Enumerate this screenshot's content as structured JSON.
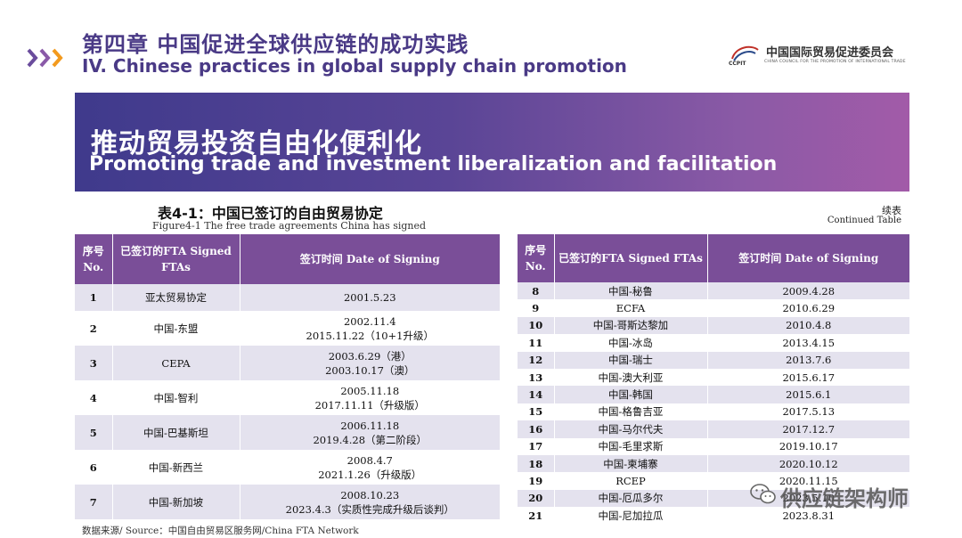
{
  "header": {
    "chapter_cn": "第四章 中国促进全球供应链的成功实践",
    "chapter_en": "IV. Chinese practices in global supply chain promotion",
    "logo_ccpit": "CCPIT",
    "logo_cn": "中国国际贸易促进委员会",
    "logo_en": "CHINA COUNCIL FOR THE PROMOTION OF INTERNATIONAL TRADE"
  },
  "banner": {
    "title_cn": "推动贸易投资自由化便利化",
    "title_en": "Promoting trade and investment liberalization and facilitation"
  },
  "table_caption": {
    "title": "表4-1：中国已签订的自由贸易协定",
    "subtitle": "Figure4-1 The free trade agreements China has signed",
    "continued_cn": "续表",
    "continued_en": "Continued Table"
  },
  "columns": {
    "no_cn": "序号",
    "no_en": "No.",
    "fta_cn": "已签订的FTA",
    "fta_en": "Signed FTAs",
    "date_cn": "签订时间",
    "date_en": "Date of Signing"
  },
  "left_rows": [
    {
      "no": "1",
      "fta": "亚太贸易协定",
      "date1": "2001.5.23",
      "date2": ""
    },
    {
      "no": "2",
      "fta": "中国-东盟",
      "date1": "2002.11.4",
      "date2": "2015.11.22（10+1升级）"
    },
    {
      "no": "3",
      "fta": "CEPA",
      "date1": "2003.6.29（港）",
      "date2": "2003.10.17（澳）"
    },
    {
      "no": "4",
      "fta": "中国-智利",
      "date1": "2005.11.18",
      "date2": "2017.11.11（升级版）"
    },
    {
      "no": "5",
      "fta": "中国-巴基斯坦",
      "date1": "2006.11.18",
      "date2": "2019.4.28（第二阶段）"
    },
    {
      "no": "6",
      "fta": "中国-新西兰",
      "date1": "2008.4.7",
      "date2": "2021.1.26（升级版）"
    },
    {
      "no": "7",
      "fta": "中国-新加坡",
      "date1": "2008.10.23",
      "date2": "2023.4.3（实质性完成升级后谈判）"
    }
  ],
  "right_rows": [
    {
      "no": "8",
      "fta": "中国-秘鲁",
      "date": "2009.4.28"
    },
    {
      "no": "9",
      "fta": "ECFA",
      "date": "2010.6.29"
    },
    {
      "no": "10",
      "fta": "中国-哥斯达黎加",
      "date": "2010.4.8"
    },
    {
      "no": "11",
      "fta": "中国-冰岛",
      "date": "2013.4.15"
    },
    {
      "no": "12",
      "fta": "中国-瑞士",
      "date": "2013.7.6"
    },
    {
      "no": "13",
      "fta": "中国-澳大利亚",
      "date": "2015.6.17"
    },
    {
      "no": "14",
      "fta": "中国-韩国",
      "date": "2015.6.1"
    },
    {
      "no": "15",
      "fta": "中国-格鲁吉亚",
      "date": "2017.5.13"
    },
    {
      "no": "16",
      "fta": "中国-马尔代夫",
      "date": "2017.12.7"
    },
    {
      "no": "17",
      "fta": "中国-毛里求斯",
      "date": "2019.10.17"
    },
    {
      "no": "18",
      "fta": "中国-柬埔寨",
      "date": "2020.10.12"
    },
    {
      "no": "19",
      "fta": "RCEP",
      "date": "2020.11.15"
    },
    {
      "no": "20",
      "fta": "中国-厄瓜多尔",
      "date": "2023.5.10"
    },
    {
      "no": "21",
      "fta": "中国-尼加拉瓜",
      "date": "2023.8.31"
    }
  ],
  "source": "数据来源/ Source：中国自由贸易区服务网/China FTA Network",
  "watermark": "供应链架构师",
  "colors": {
    "title_purple": "#4a3a86",
    "header_purple": "#7a4e98",
    "row_tint": "#e4e2ee",
    "chevron_orange": "#f39a1e",
    "chevron_purple": "#5a3f8f"
  }
}
